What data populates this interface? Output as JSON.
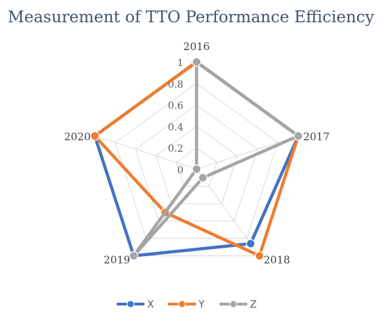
{
  "chart_data": {
    "type": "radar",
    "title": "Measurement of TTO Performance Efficiency",
    "categories": [
      "2016",
      "2017",
      "2018",
      "2019",
      "2020"
    ],
    "ticks": [
      "0",
      "0.2",
      "0.4",
      "0.6",
      "0.8",
      "1"
    ],
    "rlim": [
      0,
      1
    ],
    "grid": true,
    "legend_position": "bottom",
    "series": [
      {
        "name": "X",
        "color": "#4472c4",
        "values": [
          1,
          1,
          0.86,
          1,
          1
        ]
      },
      {
        "name": "Y",
        "color": "#ed7d31",
        "values": [
          1,
          1,
          1,
          0.5,
          1
        ]
      },
      {
        "name": "Z",
        "color": "#a5a5a5",
        "values": [
          1,
          1,
          0.1,
          1,
          0
        ]
      }
    ]
  }
}
